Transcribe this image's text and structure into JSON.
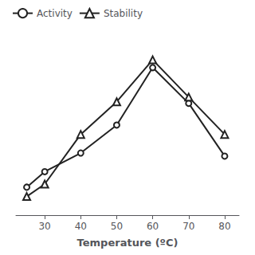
{
  "chart_data": {
    "type": "line",
    "xlabel": "Temperature (ºC)",
    "series": [
      {
        "name": "Activity",
        "color": "#222222",
        "marker": "circle",
        "x": [
          25,
          30,
          40,
          50,
          60,
          70,
          80
        ],
        "values": [
          18,
          28,
          40,
          58,
          95,
          72,
          38
        ]
      },
      {
        "name": "Stability",
        "color": "#222222",
        "marker": "triangle",
        "x": [
          25,
          30,
          40,
          50,
          60,
          70,
          80
        ],
        "values": [
          12,
          20,
          52,
          73,
          100,
          76,
          52
        ]
      }
    ],
    "xlim": [
      22,
      84
    ],
    "xticks": [
      30,
      40,
      50,
      60,
      70,
      80
    ],
    "ylim": [
      0,
      118
    ],
    "tick_labels": "x",
    "grid": false,
    "legend": "upper left"
  }
}
